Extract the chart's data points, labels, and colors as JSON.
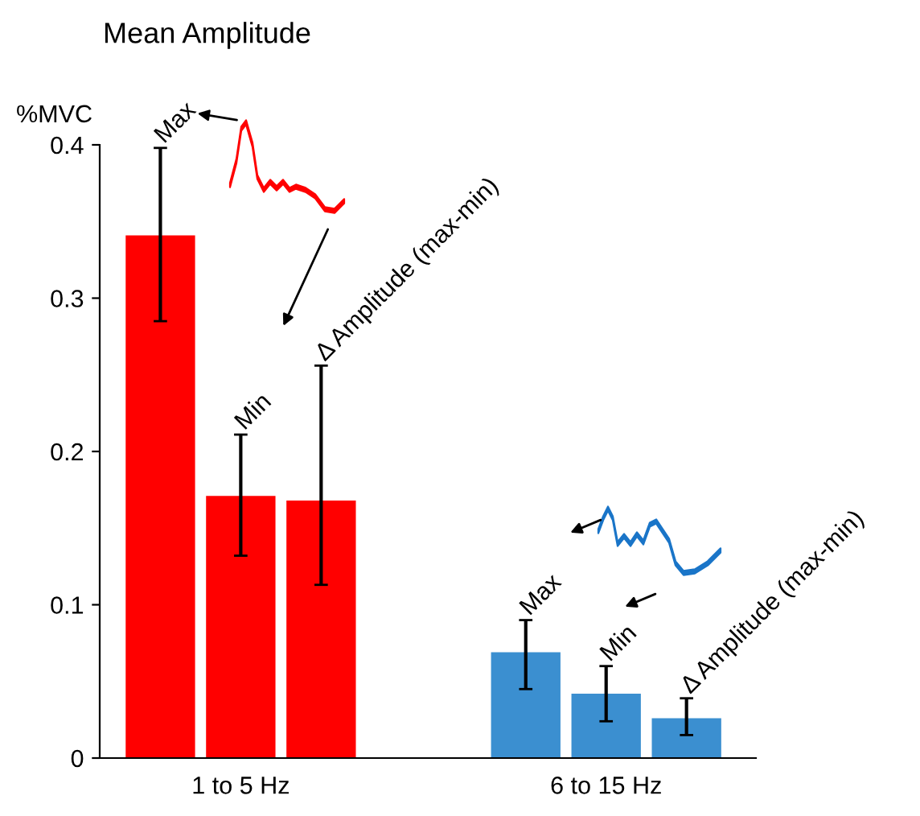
{
  "chart_data": {
    "type": "bar",
    "title": "Mean Amplitude",
    "ylabel": "%MVC",
    "categories": [
      "1 to 5 Hz",
      "6 to 15 Hz"
    ],
    "series": [
      {
        "name": "Max",
        "colors": [
          "#ff0000",
          "#3b8fd0"
        ],
        "values": [
          0.341,
          0.069
        ],
        "errors": [
          [
            0.285,
            0.398
          ],
          [
            0.045,
            0.09
          ]
        ]
      },
      {
        "name": "Min",
        "colors": [
          "#ff0000",
          "#3b8fd0"
        ],
        "values": [
          0.171,
          0.042
        ],
        "errors": [
          [
            0.132,
            0.211
          ],
          [
            0.024,
            0.06
          ]
        ]
      },
      {
        "name": "Δ Amplitude (max-min)",
        "colors": [
          "#ff0000",
          "#3b8fd0"
        ],
        "values": [
          0.168,
          0.026
        ],
        "errors": [
          [
            0.113,
            0.256
          ],
          [
            0.015,
            0.039
          ]
        ]
      }
    ],
    "ylim": [
      0,
      0.4
    ],
    "yticks": [
      0,
      0.1,
      0.2,
      0.3,
      0.4
    ],
    "grid": false,
    "legend": false
  }
}
